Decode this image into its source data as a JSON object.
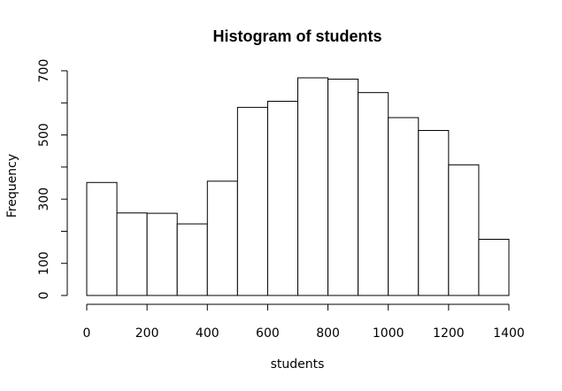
{
  "chart_data": {
    "type": "bar",
    "title": "Histogram of students",
    "xlabel": "students",
    "ylabel": "Frequency",
    "xlim": [
      0,
      1400
    ],
    "ylim": [
      0,
      700
    ],
    "bin_edges": [
      0,
      100,
      200,
      300,
      400,
      500,
      600,
      700,
      800,
      900,
      1000,
      1100,
      1200,
      1300,
      1400
    ],
    "values": [
      352,
      257,
      256,
      223,
      356,
      586,
      605,
      678,
      674,
      632,
      554,
      514,
      407,
      175
    ],
    "x_ticks": [
      0,
      200,
      400,
      600,
      800,
      1000,
      1200,
      1400
    ],
    "x_tick_labels": [
      "0",
      "200",
      "400",
      "600",
      "800",
      "1000",
      "1200",
      "1400"
    ],
    "y_ticks": [
      0,
      100,
      200,
      300,
      400,
      500,
      600,
      700
    ],
    "y_tick_labels": [
      "0",
      "100",
      "",
      "300",
      "",
      "500",
      "",
      "700"
    ],
    "grid": false,
    "colors": {
      "bar_fill": "#ffffff",
      "bar_stroke": "#000000"
    }
  }
}
